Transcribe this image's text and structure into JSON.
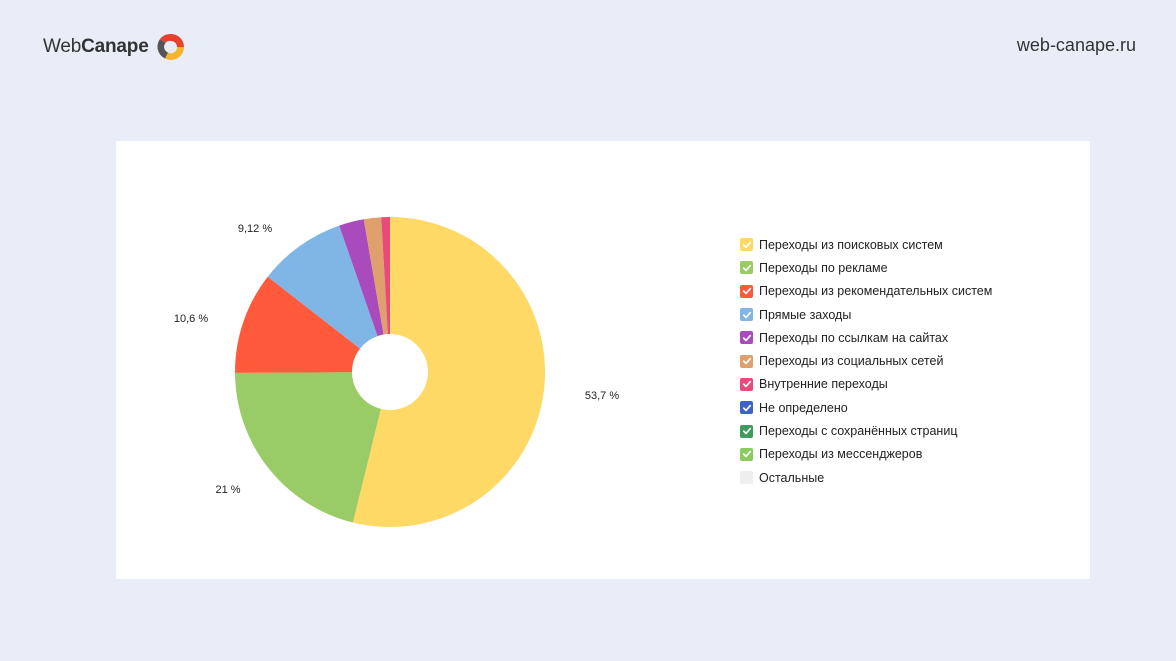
{
  "header": {
    "brand_part1": "Web",
    "brand_part2": "Canape",
    "site_url": "web-canape.ru"
  },
  "colors": {
    "background": "#e8edf8",
    "card": "#ffffff",
    "logo_red": "#e5412d",
    "logo_yellow": "#f7b52c",
    "logo_gray": "#555555"
  },
  "chart_data": {
    "type": "pie",
    "donut": true,
    "slices": [
      {
        "name": "Переходы из поисковых систем",
        "value": 53.7,
        "label": "53,7 %",
        "color": "#fed966"
      },
      {
        "name": "Переходы по рекламе",
        "value": 21,
        "label": "21 %",
        "color": "#99cc66"
      },
      {
        "name": "Переходы из рекомендательных систем",
        "value": 10.6,
        "label": "10,6 %",
        "color": "#ff5a3c"
      },
      {
        "name": "Прямые заходы",
        "value": 9.12,
        "label": "9,12 %",
        "color": "#7fb6e6"
      },
      {
        "name": "Переходы по ссылкам на сайтах",
        "value": 2.6,
        "label": "",
        "color": "#a94bbd"
      },
      {
        "name": "Переходы из социальных сетей",
        "value": 1.8,
        "label": "",
        "color": "#dfa06e"
      },
      {
        "name": "Внутренние переходы",
        "value": 0.9,
        "label": "",
        "color": "#e84a7a"
      },
      {
        "name": "Не определено",
        "value": 0,
        "label": "",
        "color": "#3f63c4"
      },
      {
        "name": "Переходы с сохранённых страниц",
        "value": 0,
        "label": "",
        "color": "#3f9c5a"
      },
      {
        "name": "Переходы из мессенджеров",
        "value": 0,
        "label": "",
        "color": "#8ccc5e"
      },
      {
        "name": "Остальные",
        "value": 0,
        "label": "",
        "color": "#eeeeee",
        "unchecked": true
      }
    ],
    "legend_position": "right"
  }
}
